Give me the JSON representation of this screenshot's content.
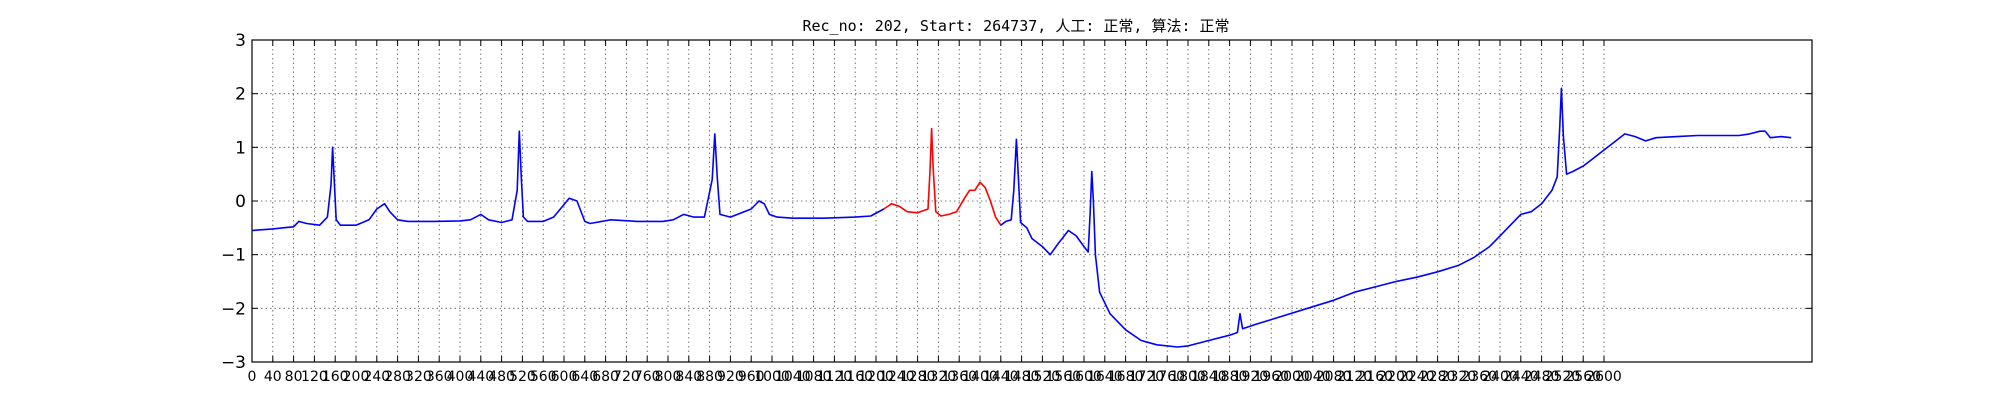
{
  "chart_data": {
    "type": "line",
    "title": "Rec_no: 202, Start: 264737, 人工: 正常, 算法: 正常",
    "xlabel": "",
    "ylabel": "",
    "xlim": [
      0,
      3000
    ],
    "ylim": [
      -3,
      3
    ],
    "yticks": [
      3,
      2,
      1,
      0,
      -1,
      -2,
      -3
    ],
    "ytick_labels": [
      "3",
      "2",
      "1",
      "0",
      "−1",
      "−2",
      "−3"
    ],
    "xticks": [
      0,
      40,
      80,
      120,
      160,
      200,
      240,
      280,
      320,
      360,
      400,
      440,
      480,
      520,
      560,
      600,
      640,
      680,
      720,
      760,
      800,
      840,
      880,
      920,
      960,
      1000,
      1040,
      1080,
      1120,
      1160,
      1200,
      1240,
      1280,
      1320,
      1360,
      1400,
      1440,
      1480,
      1520,
      1560,
      1600,
      1640,
      1680,
      1720,
      1760,
      1800,
      1840,
      1880,
      1920,
      1960,
      2000,
      2040,
      2080,
      2120,
      2160,
      2200,
      2240,
      2280,
      2320,
      2360,
      2400,
      2440,
      2480,
      2520,
      2560,
      2600
    ],
    "grid": true,
    "series": [
      {
        "color": "#0000ff",
        "points": [
          [
            0,
            -0.55
          ],
          [
            40,
            -0.52
          ],
          [
            60,
            -0.5
          ],
          [
            80,
            -0.48
          ],
          [
            90,
            -0.38
          ],
          [
            105,
            -0.42
          ],
          [
            130,
            -0.45
          ],
          [
            145,
            -0.3
          ],
          [
            152,
            0.3
          ],
          [
            155,
            1.0
          ],
          [
            158,
            0.4
          ],
          [
            162,
            -0.35
          ],
          [
            170,
            -0.45
          ],
          [
            200,
            -0.45
          ],
          [
            225,
            -0.35
          ],
          [
            240,
            -0.15
          ],
          [
            255,
            -0.05
          ],
          [
            265,
            -0.2
          ],
          [
            280,
            -0.35
          ],
          [
            300,
            -0.38
          ],
          [
            350,
            -0.38
          ],
          [
            400,
            -0.37
          ],
          [
            420,
            -0.35
          ],
          [
            440,
            -0.25
          ],
          [
            455,
            -0.35
          ],
          [
            480,
            -0.4
          ],
          [
            500,
            -0.35
          ],
          [
            510,
            0.2
          ],
          [
            514,
            1.3
          ],
          [
            518,
            0.4
          ],
          [
            522,
            -0.3
          ],
          [
            530,
            -0.38
          ],
          [
            560,
            -0.38
          ],
          [
            580,
            -0.3
          ],
          [
            610,
            0.05
          ],
          [
            625,
            0.0
          ],
          [
            640,
            -0.38
          ],
          [
            650,
            -0.42
          ],
          [
            690,
            -0.35
          ],
          [
            740,
            -0.38
          ],
          [
            790,
            -0.38
          ],
          [
            810,
            -0.35
          ],
          [
            830,
            -0.25
          ],
          [
            850,
            -0.3
          ],
          [
            870,
            -0.3
          ],
          [
            885,
            0.4
          ],
          [
            890,
            1.25
          ],
          [
            895,
            0.4
          ],
          [
            900,
            -0.25
          ],
          [
            920,
            -0.3
          ],
          [
            960,
            -0.15
          ],
          [
            975,
            0.0
          ],
          [
            985,
            -0.05
          ],
          [
            995,
            -0.25
          ],
          [
            1010,
            -0.3
          ],
          [
            1040,
            -0.32
          ],
          [
            1100,
            -0.32
          ],
          [
            1160,
            -0.3
          ],
          [
            1190,
            -0.28
          ],
          [
            1215,
            -0.15
          ]
        ]
      },
      {
        "color": "#ff0000",
        "points": [
          [
            1215,
            -0.15
          ],
          [
            1230,
            -0.05
          ],
          [
            1245,
            -0.1
          ],
          [
            1260,
            -0.2
          ],
          [
            1280,
            -0.22
          ],
          [
            1300,
            -0.15
          ],
          [
            1304,
            0.6
          ],
          [
            1307,
            1.35
          ],
          [
            1310,
            0.6
          ],
          [
            1315,
            -0.2
          ],
          [
            1325,
            -0.28
          ],
          [
            1340,
            -0.25
          ],
          [
            1355,
            -0.2
          ],
          [
            1370,
            0.05
          ],
          [
            1380,
            0.2
          ],
          [
            1390,
            0.2
          ],
          [
            1400,
            0.35
          ],
          [
            1410,
            0.25
          ],
          [
            1420,
            0.0
          ],
          [
            1430,
            -0.3
          ],
          [
            1440,
            -0.45
          ]
        ]
      },
      {
        "color": "#0000ff",
        "points": [
          [
            1440,
            -0.45
          ],
          [
            1450,
            -0.38
          ],
          [
            1460,
            -0.35
          ],
          [
            1465,
            0.2
          ],
          [
            1470,
            1.15
          ],
          [
            1474,
            0.4
          ],
          [
            1478,
            -0.4
          ],
          [
            1490,
            -0.5
          ],
          [
            1500,
            -0.7
          ],
          [
            1520,
            -0.85
          ],
          [
            1535,
            -1.0
          ],
          [
            1550,
            -0.8
          ],
          [
            1570,
            -0.55
          ],
          [
            1585,
            -0.65
          ],
          [
            1600,
            -0.85
          ],
          [
            1608,
            -0.95
          ],
          [
            1612,
            -0.2
          ],
          [
            1615,
            0.55
          ],
          [
            1618,
            0.0
          ],
          [
            1622,
            -1.0
          ],
          [
            1630,
            -1.7
          ],
          [
            1650,
            -2.1
          ],
          [
            1680,
            -2.4
          ],
          [
            1710,
            -2.6
          ],
          [
            1740,
            -2.68
          ],
          [
            1780,
            -2.72
          ],
          [
            1800,
            -2.7
          ],
          [
            1840,
            -2.6
          ],
          [
            1880,
            -2.5
          ],
          [
            1895,
            -2.45
          ],
          [
            1900,
            -2.1
          ],
          [
            1905,
            -2.38
          ],
          [
            1930,
            -2.3
          ],
          [
            1980,
            -2.15
          ],
          [
            2030,
            -2.0
          ],
          [
            2080,
            -1.85
          ],
          [
            2120,
            -1.7
          ],
          [
            2160,
            -1.6
          ],
          [
            2200,
            -1.5
          ],
          [
            2240,
            -1.42
          ],
          [
            2280,
            -1.32
          ],
          [
            2320,
            -1.2
          ],
          [
            2350,
            -1.05
          ],
          [
            2380,
            -0.85
          ],
          [
            2400,
            -0.65
          ],
          [
            2420,
            -0.45
          ],
          [
            2440,
            -0.25
          ],
          [
            2460,
            -0.2
          ],
          [
            2480,
            -0.05
          ],
          [
            2500,
            0.2
          ],
          [
            2510,
            0.45
          ],
          [
            2515,
            1.4
          ],
          [
            2518,
            2.1
          ],
          [
            2522,
            1.2
          ],
          [
            2528,
            0.5
          ],
          [
            2540,
            0.55
          ],
          [
            2560,
            0.65
          ],
          [
            2580,
            0.8
          ],
          [
            2600,
            0.95
          ],
          [
            2620,
            1.1
          ],
          [
            2640,
            1.25
          ],
          [
            2660,
            1.2
          ],
          [
            2680,
            1.12
          ],
          [
            2700,
            1.18
          ],
          [
            2740,
            1.2
          ],
          [
            2780,
            1.22
          ],
          [
            2820,
            1.22
          ],
          [
            2860,
            1.22
          ],
          [
            2880,
            1.25
          ],
          [
            2900,
            1.3
          ],
          [
            2910,
            1.3
          ],
          [
            2920,
            1.18
          ],
          [
            2940,
            1.2
          ],
          [
            2960,
            1.18
          ]
        ]
      }
    ]
  }
}
